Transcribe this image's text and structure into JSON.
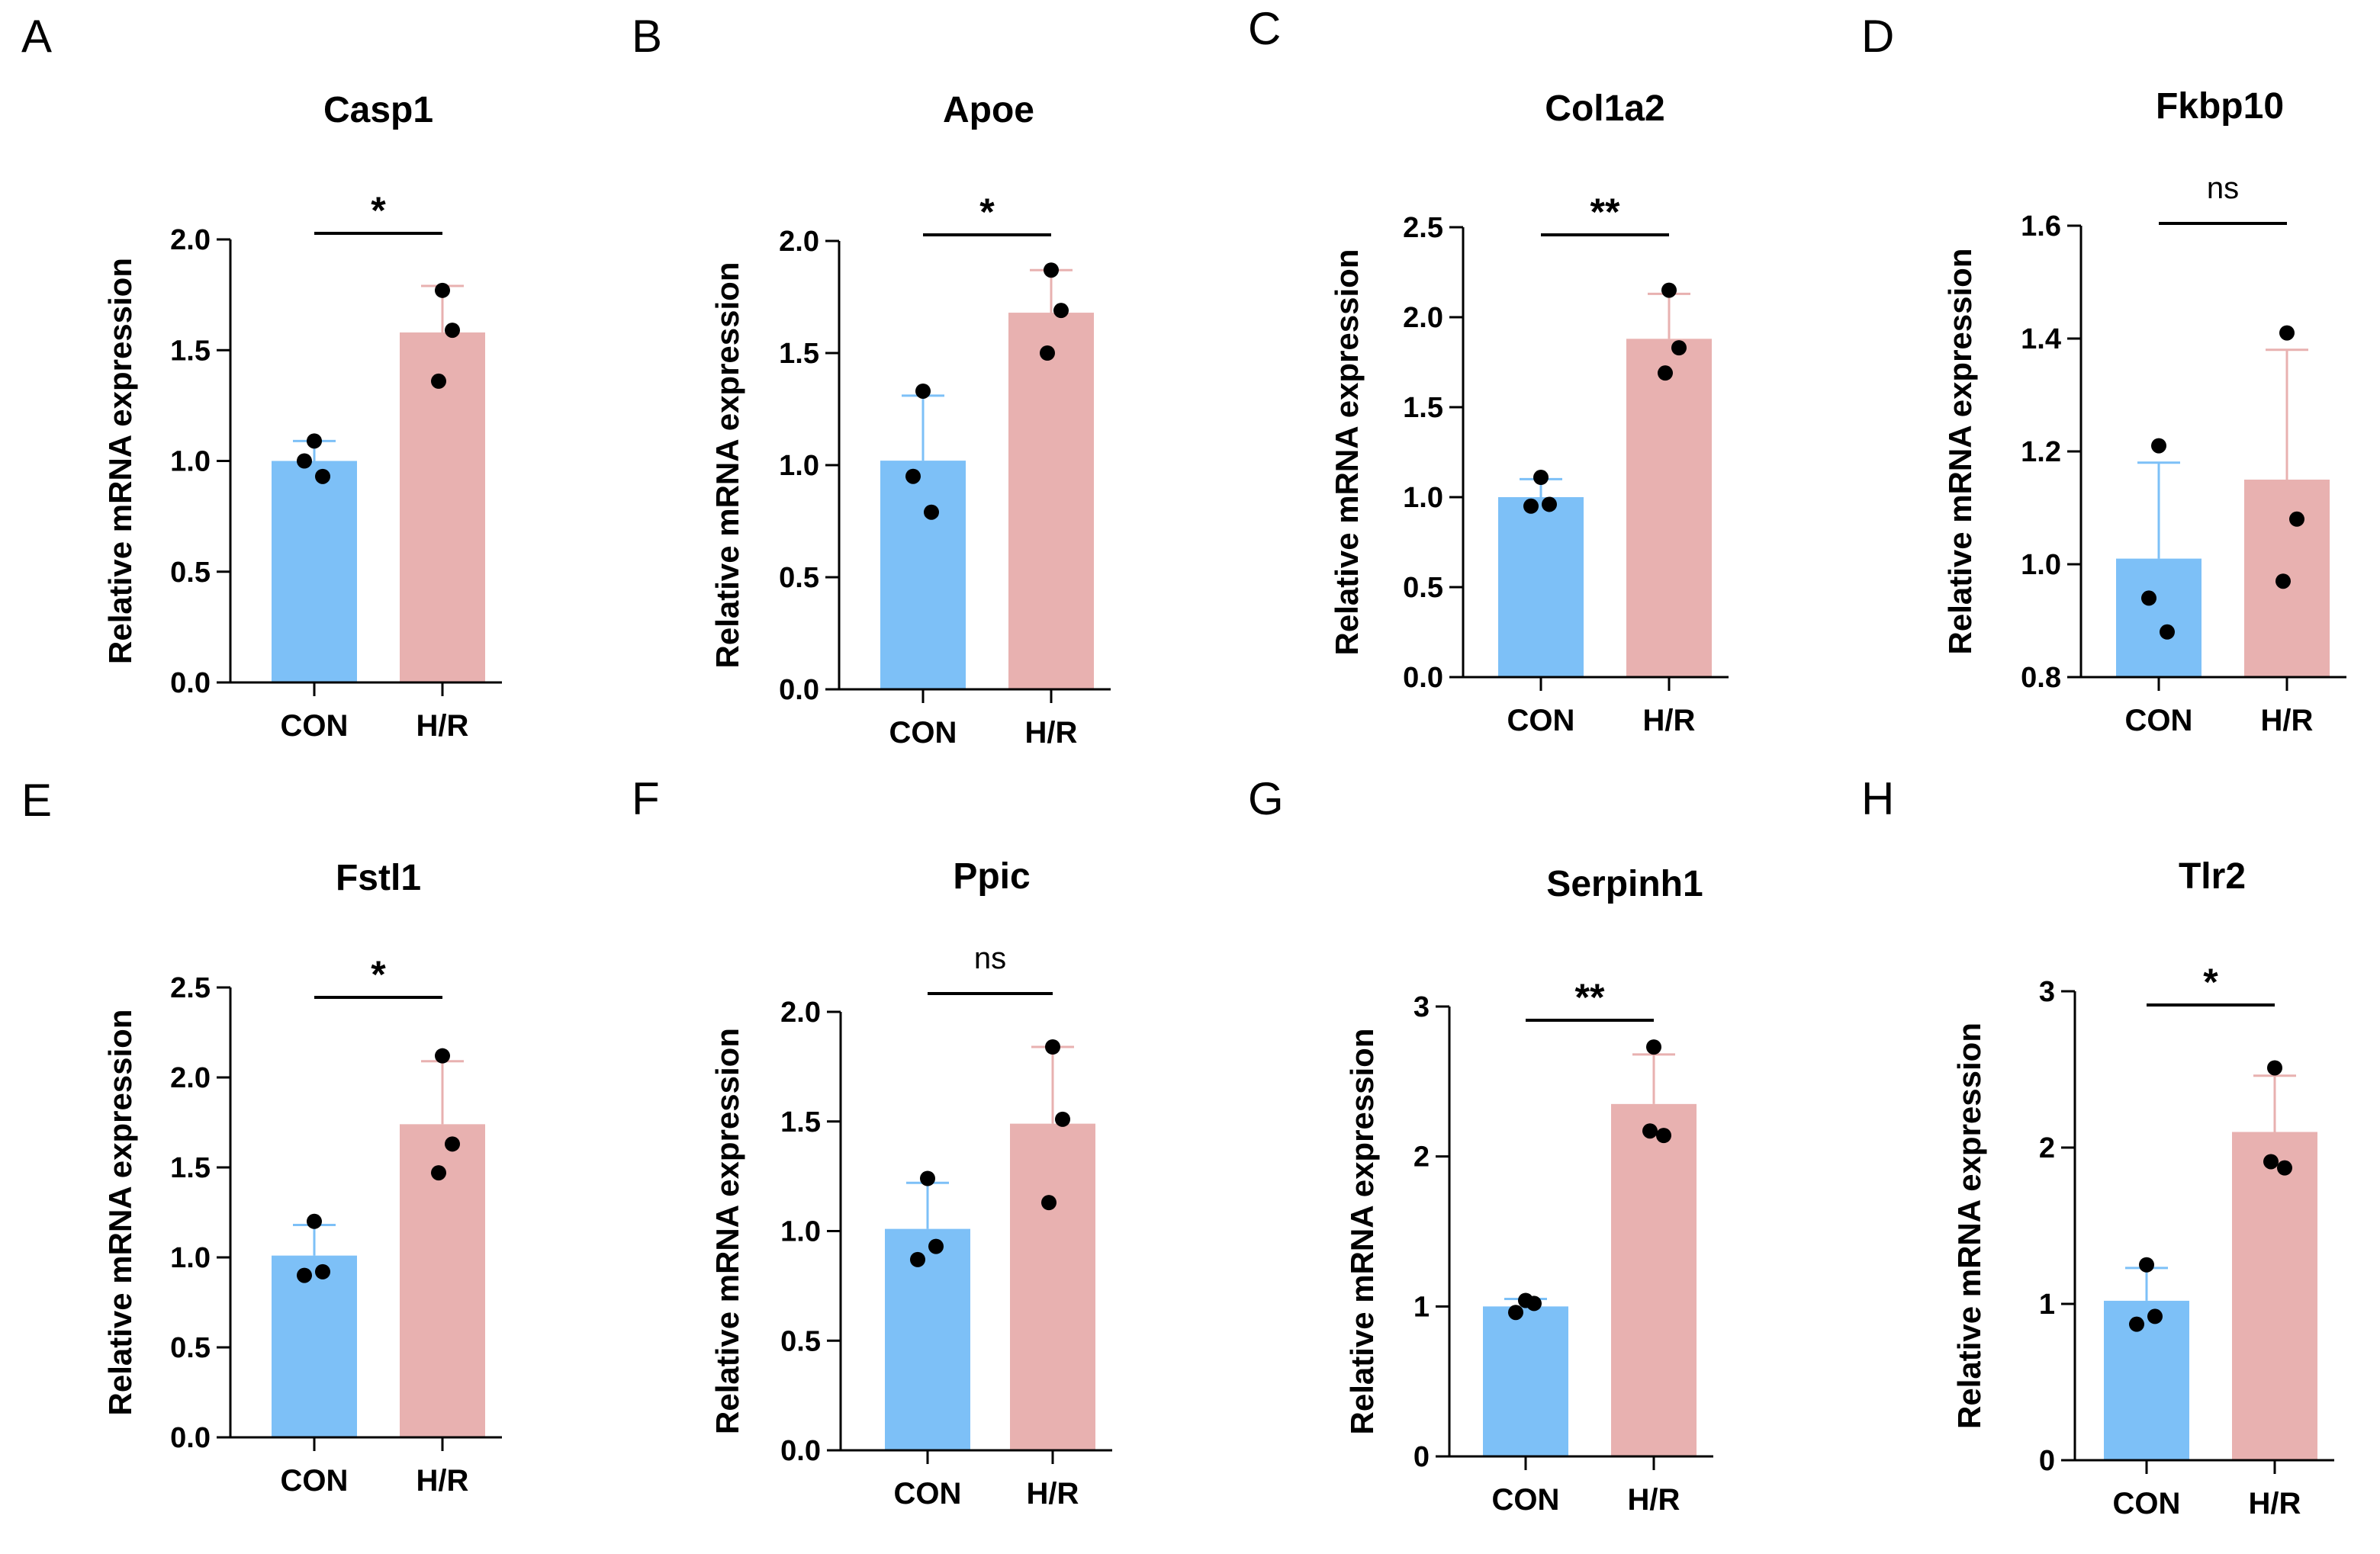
{
  "figure": {
    "panel_count": 8
  },
  "chart_data": [
    {
      "type": "bar",
      "panel": "A",
      "title": "Casp1",
      "ylabel": "Relative mRNA expression",
      "xlabel": "",
      "categories": [
        "CON",
        "H/R"
      ],
      "values": [
        1.0,
        1.58
      ],
      "errors": [
        0.09,
        0.21
      ],
      "colors": [
        "#7dc0f7",
        "#e8b1b0"
      ],
      "points": [
        [
          1.09,
          1.0,
          0.93
        ],
        [
          1.77,
          1.59,
          1.36
        ]
      ],
      "ylim": [
        0,
        2.0
      ],
      "yticks": [
        "0.0",
        "0.5",
        "1.0",
        "1.5",
        "2.0"
      ],
      "significance": "*",
      "grid": false
    },
    {
      "type": "bar",
      "panel": "B",
      "title": "Apoe",
      "ylabel": "Relative mRNA expression",
      "xlabel": "",
      "categories": [
        "CON",
        "H/R"
      ],
      "values": [
        1.02,
        1.68
      ],
      "errors": [
        0.29,
        0.19
      ],
      "colors": [
        "#7dc0f7",
        "#e8b1b0"
      ],
      "points": [
        [
          1.33,
          0.95,
          0.79
        ],
        [
          1.87,
          1.69,
          1.5
        ]
      ],
      "ylim": [
        0,
        2.0
      ],
      "yticks": [
        "0.0",
        "0.5",
        "1.0",
        "1.5",
        "2.0"
      ],
      "significance": "*",
      "grid": false
    },
    {
      "type": "bar",
      "panel": "C",
      "title": "Col1a2",
      "ylabel": "Relative mRNA expression",
      "xlabel": "",
      "categories": [
        "CON",
        "H/R"
      ],
      "values": [
        1.0,
        1.88
      ],
      "errors": [
        0.1,
        0.25
      ],
      "colors": [
        "#7dc0f7",
        "#e8b1b0"
      ],
      "points": [
        [
          1.11,
          0.95,
          0.96
        ],
        [
          2.15,
          1.83,
          1.69
        ]
      ],
      "ylim": [
        0,
        2.5
      ],
      "yticks": [
        "0.0",
        "0.5",
        "1.0",
        "1.5",
        "2.0",
        "2.5"
      ],
      "significance": "**",
      "grid": false
    },
    {
      "type": "bar",
      "panel": "D",
      "title": "Fkbp10",
      "ylabel": "Relative mRNA expression",
      "xlabel": "",
      "categories": [
        "CON",
        "H/R"
      ],
      "values": [
        1.01,
        1.15
      ],
      "errors": [
        0.17,
        0.23
      ],
      "colors": [
        "#7dc0f7",
        "#e8b1b0"
      ],
      "points": [
        [
          1.21,
          0.94,
          0.88
        ],
        [
          1.41,
          1.08,
          0.97
        ]
      ],
      "ylim": [
        0.8,
        1.6
      ],
      "yticks": [
        "0.8",
        "1.0",
        "1.2",
        "1.4",
        "1.6"
      ],
      "significance": "ns",
      "grid": false
    },
    {
      "type": "bar",
      "panel": "E",
      "title": "Fstl1",
      "ylabel": "Relative mRNA expression",
      "xlabel": "",
      "categories": [
        "CON",
        "H/R"
      ],
      "values": [
        1.01,
        1.74
      ],
      "errors": [
        0.17,
        0.35
      ],
      "colors": [
        "#7dc0f7",
        "#e8b1b0"
      ],
      "points": [
        [
          1.2,
          0.9,
          0.92
        ],
        [
          2.12,
          1.63,
          1.47
        ]
      ],
      "ylim": [
        0,
        2.5
      ],
      "yticks": [
        "0.0",
        "0.5",
        "1.0",
        "1.5",
        "2.0",
        "2.5"
      ],
      "significance": "*",
      "grid": false
    },
    {
      "type": "bar",
      "panel": "F",
      "title": "Ppic",
      "ylabel": "Relative mRNA expression",
      "xlabel": "",
      "categories": [
        "CON",
        "H/R"
      ],
      "values": [
        1.01,
        1.49
      ],
      "errors": [
        0.21,
        0.35
      ],
      "colors": [
        "#7dc0f7",
        "#e8b1b0"
      ],
      "points": [
        [
          1.24,
          0.87,
          0.93
        ],
        [
          1.84,
          1.51,
          1.13
        ]
      ],
      "ylim": [
        0,
        2.0
      ],
      "yticks": [
        "0.0",
        "0.5",
        "1.0",
        "1.5",
        "2.0"
      ],
      "significance": "ns",
      "grid": false
    },
    {
      "type": "bar",
      "panel": "G",
      "title": "Serpinh1",
      "ylabel": "Relative mRNA expression",
      "xlabel": "",
      "categories": [
        "CON",
        "H/R"
      ],
      "values": [
        1.0,
        2.35
      ],
      "errors": [
        0.05,
        0.33
      ],
      "colors": [
        "#7dc0f7",
        "#e8b1b0"
      ],
      "points": [
        [
          1.04,
          0.96,
          1.02
        ],
        [
          2.73,
          2.14,
          2.17
        ]
      ],
      "ylim": [
        0,
        3
      ],
      "yticks": [
        "0",
        "1",
        "2",
        "3"
      ],
      "significance": "**",
      "grid": false
    },
    {
      "type": "bar",
      "panel": "H",
      "title": "Tlr2",
      "ylabel": "Relative mRNA expression",
      "xlabel": "",
      "categories": [
        "CON",
        "H/R"
      ],
      "values": [
        1.02,
        2.1
      ],
      "errors": [
        0.21,
        0.36
      ],
      "colors": [
        "#7dc0f7",
        "#e8b1b0"
      ],
      "points": [
        [
          1.25,
          0.87,
          0.92
        ],
        [
          2.51,
          1.87,
          1.91
        ]
      ],
      "ylim": [
        0,
        3
      ],
      "yticks": [
        "0",
        "1",
        "2",
        "3"
      ],
      "significance": "*",
      "grid": false
    }
  ]
}
